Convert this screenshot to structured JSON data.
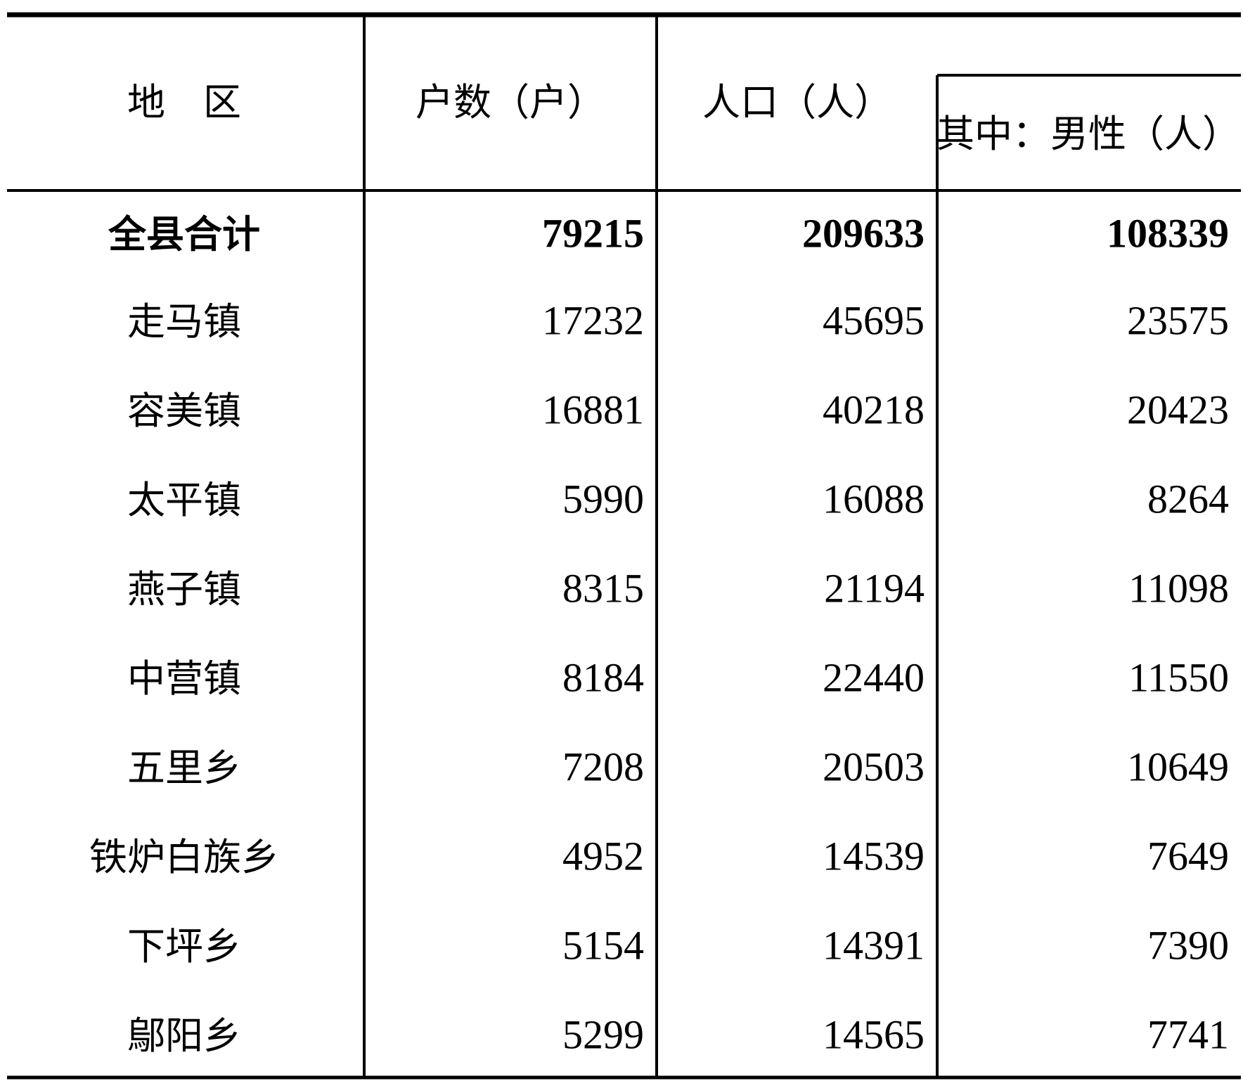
{
  "table": {
    "header": [
      "地　区",
      "户数（户）",
      "人口（人）",
      "其中：男性（人）"
    ],
    "rows": [
      [
        "全县合计",
        79215,
        209633,
        108339
      ],
      [
        "走马镇",
        17232,
        45695,
        23575
      ],
      [
        "容美镇",
        16881,
        40218,
        20423
      ],
      [
        "太平镇",
        5990,
        16088,
        8264
      ],
      [
        "燕子镇",
        8315,
        21194,
        11098
      ],
      [
        "中营镇",
        8184,
        22440,
        11550
      ],
      [
        "五里乡",
        7208,
        20503,
        10649
      ],
      [
        "铁炉白族乡",
        4952,
        14539,
        7649
      ],
      [
        "下坪乡",
        5154,
        14391,
        7390
      ],
      [
        "鄔阳乡",
        5299,
        14565,
        7741
      ]
    ]
  }
}
